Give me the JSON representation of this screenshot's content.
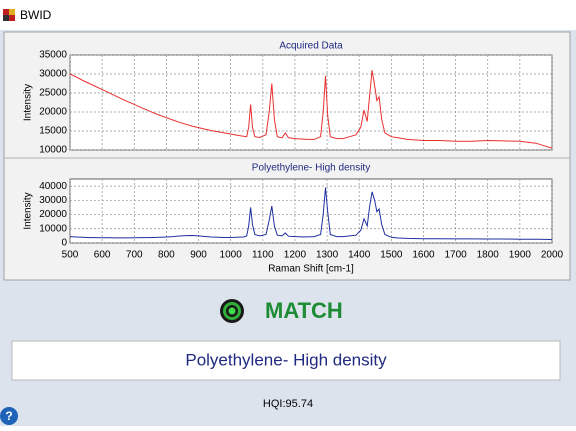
{
  "window_title": "BWID",
  "chart_data": [
    {
      "type": "line",
      "title": "Acquired Data",
      "ylabel": "Intensity",
      "x": [
        500,
        520,
        540,
        560,
        580,
        600,
        620,
        640,
        660,
        680,
        700,
        720,
        740,
        760,
        780,
        800,
        820,
        840,
        860,
        880,
        900,
        920,
        940,
        960,
        980,
        1000,
        1020,
        1040,
        1050,
        1056,
        1062,
        1068,
        1075,
        1090,
        1110,
        1120,
        1128,
        1136,
        1145,
        1160,
        1170,
        1180,
        1200,
        1220,
        1240,
        1260,
        1280,
        1288,
        1295,
        1302,
        1310,
        1330,
        1350,
        1370,
        1390,
        1405,
        1415,
        1425,
        1432,
        1440,
        1448,
        1455,
        1462,
        1470,
        1480,
        1500,
        1520,
        1550,
        1600,
        1650,
        1700,
        1750,
        1800,
        1850,
        1900,
        1950,
        1980,
        2000
      ],
      "series": [
        {
          "color": "#e83030",
          "values": [
            30000,
            29200,
            28300,
            27500,
            26700,
            25900,
            25100,
            24300,
            23500,
            22700,
            22000,
            21200,
            20500,
            19800,
            19100,
            18500,
            17900,
            17300,
            16800,
            16300,
            15900,
            15500,
            15100,
            14800,
            14500,
            14200,
            13900,
            13600,
            13500,
            16000,
            22000,
            16000,
            13500,
            13300,
            14000,
            20000,
            27500,
            18000,
            13500,
            13200,
            14500,
            13200,
            13000,
            12900,
            12800,
            12800,
            13500,
            20000,
            29500,
            19000,
            13500,
            13000,
            13000,
            13500,
            14000,
            16000,
            20500,
            17500,
            24000,
            31000,
            27000,
            23000,
            24000,
            18000,
            14500,
            13500,
            13200,
            12800,
            12500,
            12500,
            12300,
            12300,
            12500,
            12400,
            12300,
            11800,
            11000,
            10500
          ]
        }
      ],
      "xlim": [
        500,
        2000
      ],
      "xticks": [
        500,
        600,
        700,
        800,
        900,
        1000,
        1100,
        1200,
        1300,
        1400,
        1500,
        1600,
        1700,
        1800,
        1900,
        2000
      ],
      "ylim": [
        10000,
        35000
      ],
      "yticks": [
        10000,
        15000,
        20000,
        25000,
        30000,
        35000
      ],
      "grid": true
    },
    {
      "type": "line",
      "title": "Polyethylene- High density",
      "ylabel": "Intensity",
      "xlabel": "Raman Shift [cm-1]",
      "x": [
        500,
        520,
        540,
        560,
        580,
        600,
        620,
        640,
        660,
        680,
        700,
        720,
        740,
        760,
        780,
        800,
        820,
        840,
        860,
        880,
        900,
        920,
        940,
        960,
        980,
        1000,
        1020,
        1040,
        1050,
        1056,
        1062,
        1068,
        1075,
        1090,
        1110,
        1120,
        1128,
        1136,
        1145,
        1160,
        1170,
        1180,
        1200,
        1220,
        1240,
        1260,
        1280,
        1288,
        1295,
        1302,
        1310,
        1330,
        1350,
        1370,
        1390,
        1405,
        1415,
        1425,
        1432,
        1440,
        1448,
        1455,
        1462,
        1470,
        1480,
        1500,
        1520,
        1550,
        1600,
        1650,
        1700,
        1750,
        1800,
        1850,
        1900,
        1950,
        1980,
        2000
      ],
      "series": [
        {
          "color": "#1f2fa0",
          "values": [
            4500,
            4200,
            4000,
            3800,
            3800,
            3700,
            3700,
            3600,
            3600,
            3600,
            3700,
            3800,
            3800,
            3900,
            4000,
            4200,
            4500,
            4900,
            5200,
            5300,
            5000,
            4600,
            4200,
            4000,
            3900,
            3900,
            4000,
            4200,
            5000,
            12000,
            25000,
            13000,
            6000,
            5000,
            6000,
            16000,
            26000,
            12000,
            5500,
            5000,
            7000,
            4800,
            4500,
            4300,
            4300,
            4500,
            6000,
            20000,
            39000,
            22000,
            6000,
            4500,
            4500,
            5000,
            5500,
            9000,
            17000,
            12000,
            25000,
            36000,
            30000,
            22000,
            24000,
            13000,
            6000,
            4000,
            3500,
            3200,
            3000,
            3000,
            2900,
            2900,
            2800,
            2800,
            2700,
            2600,
            2500,
            2400
          ]
        }
      ],
      "xlim": [
        500,
        2000
      ],
      "xticks": [
        500,
        600,
        700,
        800,
        900,
        1000,
        1100,
        1200,
        1300,
        1400,
        1500,
        1600,
        1700,
        1800,
        1900,
        2000
      ],
      "ylim": [
        0,
        45000
      ],
      "yticks": [
        0,
        10000,
        20000,
        30000,
        40000
      ],
      "grid": true
    }
  ],
  "status": "MATCH",
  "result": "Polyethylene- High density",
  "hqi": "HQI:95.74",
  "help": "?"
}
